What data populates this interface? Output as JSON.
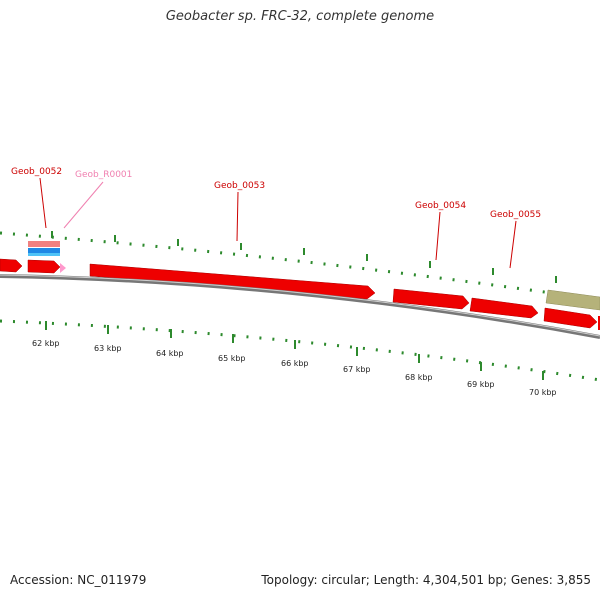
{
  "title": "Geobacter sp. FRC-32, complete genome",
  "footer": {
    "accession": "Accession: NC_011979",
    "topology": "Topology: circular; Length: 4,304,501 bp; Genes: 3,855"
  },
  "colors": {
    "cds": "#ee0000",
    "trna": "#ff99cc",
    "pseudo": "#b5b27a",
    "backbone": "#777777",
    "ticks": "#2d8a2d",
    "label_gene": "#cc0000",
    "label_rna": "#f080b0"
  },
  "gene_labels": [
    {
      "id": "geob-0052-label",
      "text": "Geob_0052",
      "kind": "gene"
    },
    {
      "id": "geob-r0001-label",
      "text": "Geob_R0001",
      "kind": "rna"
    },
    {
      "id": "geob-0053-label",
      "text": "Geob_0053",
      "kind": "gene"
    },
    {
      "id": "geob-0054-label",
      "text": "Geob_0054",
      "kind": "gene"
    },
    {
      "id": "geob-0055-label",
      "text": "Geob_0055",
      "kind": "gene"
    }
  ],
  "kbp_labels": [
    "62 kbp",
    "63 kbp",
    "64 kbp",
    "65 kbp",
    "66 kbp",
    "67 kbp",
    "68 kbp",
    "69 kbp",
    "70 kbp"
  ]
}
